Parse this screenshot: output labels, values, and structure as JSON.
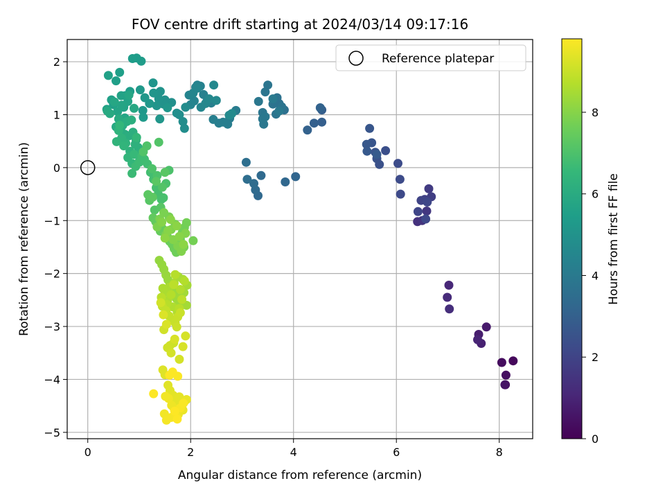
{
  "chart_data": {
    "type": "scatter",
    "title": "FOV centre drift starting at 2024/03/14 09:17:16",
    "xlabel": "Angular distance from reference (arcmin)",
    "ylabel": "Rotation from reference (arcmin)",
    "xlim": [
      -0.4,
      8.65
    ],
    "ylim": [
      -5.12,
      2.42
    ],
    "xticks": [
      0,
      2,
      4,
      6,
      8
    ],
    "yticks": [
      -5,
      -4,
      -3,
      -2,
      -1,
      0,
      1,
      2
    ],
    "grid": true,
    "legend": {
      "position": "top-right",
      "entries": [
        "Reference platepar"
      ]
    },
    "reference_point": {
      "x": 0,
      "y": 0
    },
    "colorbar": {
      "label": "Hours from first FF file",
      "range": [
        0,
        9.8
      ],
      "ticks": [
        0,
        2,
        4,
        6,
        8
      ],
      "colormap": [
        "#440154",
        "#482878",
        "#3e4989",
        "#31688e",
        "#26828e",
        "#1f9e89",
        "#35b779",
        "#6ece58",
        "#b5de2b",
        "#fde725"
      ]
    },
    "series": [
      {
        "x": [
          8.12,
          8.27,
          8.05,
          8.13,
          8.11
        ],
        "y": [
          -4.1,
          -3.65,
          -3.68,
          -3.92,
          -4.1
        ],
        "t": [
          0.1,
          0.2,
          0.3,
          0.4,
          0.5
        ]
      },
      {
        "x": [
          7.75,
          7.6,
          7.65,
          7.58
        ],
        "y": [
          -3.01,
          -3.15,
          -3.32,
          -3.25
        ],
        "t": [
          0.7,
          0.8,
          0.9,
          1.0
        ]
      },
      {
        "x": [
          7.02,
          6.99,
          7.03
        ],
        "y": [
          -2.22,
          -2.45,
          -2.67
        ],
        "t": [
          1.1,
          1.2,
          1.3
        ]
      },
      {
        "x": [
          6.41,
          6.5,
          6.59,
          6.63,
          6.68,
          6.55,
          6.48,
          6.42,
          6.6,
          6.57
        ],
        "y": [
          -1.02,
          -1.0,
          -0.82,
          -0.4,
          -0.55,
          -0.6,
          -0.62,
          -0.83,
          -0.65,
          -0.97
        ],
        "t": [
          1.4,
          1.5,
          1.6,
          1.7,
          1.8,
          1.9,
          2.0,
          2.05,
          2.1,
          2.15
        ]
      },
      {
        "x": [
          6.08,
          6.07,
          6.03,
          5.79,
          5.67,
          5.62,
          5.59,
          5.52,
          5.48,
          5.42,
          5.43,
          5.62
        ],
        "y": [
          -0.5,
          -0.22,
          0.08,
          0.32,
          0.06,
          0.17,
          0.29,
          0.47,
          0.74,
          0.44,
          0.31,
          0.25
        ],
        "t": [
          2.2,
          2.25,
          2.3,
          2.4,
          2.45,
          2.5,
          2.55,
          2.6,
          2.65,
          2.7,
          2.75,
          2.8
        ]
      },
      {
        "x": [
          4.55,
          4.55,
          4.4,
          4.27,
          4.52
        ],
        "y": [
          1.09,
          0.86,
          0.84,
          0.71,
          1.13
        ],
        "t": [
          2.9,
          2.95,
          3.0,
          3.05,
          3.1
        ]
      },
      {
        "x": [
          4.04,
          3.84,
          3.31,
          3.37,
          3.26,
          3.23,
          3.1,
          3.08
        ],
        "y": [
          -0.17,
          -0.27,
          -0.53,
          -0.15,
          -0.42,
          -0.3,
          -0.22,
          0.1
        ],
        "t": [
          3.2,
          3.25,
          3.3,
          3.35,
          3.4,
          3.45,
          3.5,
          3.55
        ]
      },
      {
        "x": [
          3.82,
          3.75,
          3.72,
          3.68,
          3.63,
          3.6,
          3.77,
          3.66,
          3.5,
          3.45,
          3.4,
          3.42,
          3.32,
          3.4,
          3.45,
          3.72,
          3.6
        ],
        "y": [
          1.09,
          1.13,
          1.21,
          1.32,
          1.29,
          1.2,
          1.15,
          1.01,
          1.56,
          1.43,
          1.04,
          0.82,
          1.25,
          0.92,
          0.96,
          1.07,
          1.3
        ],
        "t": [
          3.6,
          3.62,
          3.65,
          3.68,
          3.7,
          3.72,
          3.75,
          3.78,
          3.8,
          3.82,
          3.85,
          3.88,
          3.9,
          3.92,
          3.95,
          3.98,
          4.0
        ]
      },
      {
        "x": [
          2.88,
          2.76,
          2.72,
          2.63,
          2.55,
          2.44,
          2.4,
          2.32,
          2.25,
          2.19,
          2.13,
          2.1,
          2.07,
          2.0,
          1.97,
          2.05,
          2.13,
          2.2,
          2.29,
          2.36,
          2.45,
          2.5,
          2.75,
          2.8
        ],
        "y": [
          1.08,
          0.93,
          0.82,
          0.86,
          0.84,
          0.91,
          1.22,
          1.26,
          1.38,
          1.54,
          1.56,
          1.52,
          1.26,
          1.19,
          1.37,
          1.41,
          1.5,
          1.14,
          1.21,
          1.3,
          1.56,
          1.27,
          0.99,
          1.02
        ],
        "t": [
          4.1,
          4.12,
          4.15,
          4.18,
          4.2,
          4.22,
          4.25,
          4.28,
          4.3,
          4.32,
          4.35,
          4.38,
          4.4,
          4.42,
          4.45,
          4.48,
          4.5,
          4.52,
          4.55,
          4.58,
          4.6,
          4.62,
          4.65,
          4.68
        ]
      },
      {
        "x": [
          1.9,
          1.88,
          1.85,
          1.78,
          1.73,
          1.63,
          1.58,
          1.55,
          1.5,
          1.47,
          1.41,
          1.38,
          1.34,
          1.27,
          1.28,
          1.4,
          1.55,
          1.2,
          1.11,
          1.07,
          1.02,
          1.08
        ],
        "y": [
          1.14,
          0.74,
          0.87,
          1.0,
          1.03,
          1.23,
          1.22,
          1.2,
          1.28,
          1.2,
          1.44,
          1.3,
          1.17,
          1.6,
          1.41,
          0.92,
          1.13,
          1.21,
          1.32,
          1.08,
          1.47,
          0.95
        ],
        "t": [
          4.75,
          4.78,
          4.8,
          4.82,
          4.85,
          4.88,
          4.9,
          4.92,
          4.95,
          4.98,
          5.0,
          5.02,
          5.05,
          5.08,
          5.1,
          5.12,
          5.15,
          5.18,
          5.2,
          5.22,
          5.25,
          5.28
        ]
      },
      {
        "x": [
          1.04,
          0.95,
          0.87,
          0.82,
          0.73,
          0.62,
          0.55,
          0.5,
          0.46,
          0.4,
          0.37,
          0.65,
          0.7,
          0.78,
          0.58,
          0.66,
          0.72,
          0.52,
          0.8,
          0.9
        ],
        "y": [
          2.01,
          2.07,
          2.06,
          1.44,
          1.36,
          1.8,
          1.64,
          1.19,
          1.28,
          1.74,
          1.1,
          1.36,
          1.14,
          1.25,
          1.06,
          1.18,
          0.94,
          1.24,
          1.37,
          1.12
        ],
        "t": [
          5.35,
          5.38,
          5.4,
          5.42,
          5.45,
          5.48,
          5.5,
          5.52,
          5.55,
          5.58,
          5.6,
          5.62,
          5.65,
          5.68,
          5.7,
          5.72,
          5.75,
          5.78,
          5.8,
          5.82
        ]
      },
      {
        "x": [
          0.38,
          0.43,
          0.55,
          0.6,
          0.64,
          0.68,
          0.72,
          0.76,
          0.8,
          0.85,
          0.88,
          0.94,
          0.98,
          1.01,
          0.92,
          0.82,
          0.74,
          0.66,
          0.6,
          0.56,
          0.7,
          0.78,
          0.86,
          0.62,
          0.95,
          1.08,
          1.0,
          0.9
        ],
        "y": [
          1.07,
          1.02,
          0.77,
          0.92,
          0.72,
          0.8,
          0.63,
          0.87,
          0.6,
          0.9,
          0.67,
          0.52,
          0.38,
          0.28,
          0.44,
          0.31,
          0.46,
          0.56,
          0.7,
          0.49,
          0.41,
          0.19,
          0.08,
          0.8,
          0.57,
          0.17,
          0.12,
          0.25
        ],
        "t": [
          5.9,
          5.92,
          5.95,
          5.98,
          6.0,
          6.02,
          6.05,
          6.08,
          6.1,
          6.12,
          6.15,
          6.18,
          6.2,
          6.22,
          6.25,
          6.28,
          6.3,
          6.32,
          6.35,
          6.38,
          6.4,
          6.42,
          6.45,
          6.48,
          6.5,
          6.52,
          6.55,
          6.58
        ]
      },
      {
        "x": [
          0.86,
          0.93,
          1.0,
          1.05,
          1.1,
          1.16,
          1.22,
          1.28,
          1.33,
          1.37,
          1.43,
          1.47,
          1.52,
          1.58,
          1.35,
          1.25,
          1.15,
          1.08,
          1.38,
          1.45,
          1.3,
          1.2,
          1.42,
          1.5,
          1.33,
          1.17,
          1.26
        ],
        "y": [
          -0.11,
          0.02,
          0.1,
          0.21,
          0.16,
          0.07,
          -0.09,
          -0.22,
          -0.38,
          -0.5,
          -0.6,
          -0.57,
          -0.3,
          -0.05,
          -0.15,
          -0.02,
          0.41,
          0.3,
          0.48,
          -0.37,
          -0.8,
          -0.62,
          -0.75,
          -0.09,
          -0.26,
          -0.51,
          -0.56
        ],
        "t": [
          6.65,
          6.68,
          6.7,
          6.72,
          6.75,
          6.78,
          6.8,
          6.82,
          6.85,
          6.88,
          6.9,
          6.92,
          6.95,
          6.98,
          7.0,
          7.02,
          7.05,
          7.08,
          7.1,
          7.12,
          7.15,
          7.18,
          7.2,
          7.22,
          7.25,
          7.28,
          7.3
        ]
      },
      {
        "x": [
          1.27,
          1.32,
          1.36,
          1.41,
          1.45,
          1.5,
          1.55,
          1.59,
          1.64,
          1.68,
          1.72,
          1.76,
          1.8,
          1.84,
          1.88,
          1.92,
          2.05,
          1.87,
          1.7,
          1.58,
          1.48,
          1.4,
          1.35,
          1.52,
          1.62,
          1.75,
          1.82,
          1.9,
          1.66,
          1.44,
          1.56,
          1.78,
          1.61,
          1.73,
          1.86,
          1.5
        ],
        "y": [
          -0.95,
          -1.02,
          -1.11,
          -1.2,
          -1.15,
          -1.25,
          -1.31,
          -1.39,
          -1.45,
          -1.53,
          -1.6,
          -1.41,
          -1.35,
          -1.22,
          -1.13,
          -1.04,
          -1.38,
          -1.5,
          -1.07,
          -0.93,
          -0.85,
          -0.97,
          -1.12,
          -1.27,
          -1.17,
          -1.48,
          -1.58,
          -1.24,
          -1.36,
          -1.03,
          -1.19,
          -1.3,
          -0.98,
          -1.1,
          -1.45,
          -1.33
        ],
        "t": [
          7.4,
          7.42,
          7.44,
          7.46,
          7.48,
          7.5,
          7.52,
          7.54,
          7.56,
          7.58,
          7.6,
          7.62,
          7.64,
          7.66,
          7.68,
          7.7,
          7.72,
          7.74,
          7.76,
          7.78,
          7.8,
          7.82,
          7.84,
          7.86,
          7.88,
          7.9,
          7.92,
          7.94,
          7.96,
          7.98,
          8.0,
          8.02,
          8.04,
          8.06,
          8.08,
          8.1
        ]
      },
      {
        "x": [
          1.39,
          1.44,
          1.48,
          1.52,
          1.56,
          1.6,
          1.64,
          1.68,
          1.72,
          1.77,
          1.82,
          1.87,
          1.92,
          1.93,
          1.85,
          1.76,
          1.68,
          1.58,
          1.5,
          1.46,
          1.55,
          1.65,
          1.74,
          1.8,
          1.88,
          1.62,
          1.7,
          1.78,
          1.53,
          1.43,
          1.67,
          1.83
        ],
        "y": [
          -1.75,
          -1.83,
          -1.92,
          -2.03,
          -2.12,
          -2.2,
          -2.3,
          -2.39,
          -2.47,
          -2.56,
          -2.45,
          -2.36,
          -2.6,
          -2.22,
          -2.11,
          -2.06,
          -2.18,
          -2.26,
          -2.35,
          -2.28,
          -2.51,
          -2.63,
          -2.73,
          -2.3,
          -2.14,
          -2.4,
          -2.02,
          -2.66,
          -2.58,
          -2.45,
          -2.21,
          -2.49
        ],
        "t": [
          8.2,
          8.22,
          8.24,
          8.26,
          8.28,
          8.3,
          8.32,
          8.34,
          8.36,
          8.38,
          8.4,
          8.42,
          8.44,
          8.46,
          8.48,
          8.5,
          8.52,
          8.54,
          8.56,
          8.58,
          8.6,
          8.62,
          8.64,
          8.66,
          8.68,
          8.7,
          8.72,
          8.74,
          8.76,
          8.78,
          8.8,
          8.82
        ]
      },
      {
        "x": [
          1.45,
          1.52,
          1.58,
          1.64,
          1.7,
          1.75,
          1.8,
          1.73,
          1.67,
          1.6,
          1.55,
          1.48,
          1.42,
          1.62,
          1.78,
          1.9,
          1.85,
          1.69,
          1.53,
          1.47
        ],
        "y": [
          -2.62,
          -2.7,
          -2.8,
          -2.88,
          -2.93,
          -2.82,
          -2.74,
          -3.01,
          -3.31,
          -3.36,
          -3.4,
          -3.06,
          -2.55,
          -3.5,
          -3.62,
          -3.18,
          -3.38,
          -3.24,
          -2.96,
          -2.78
        ],
        "t": [
          8.9,
          8.92,
          8.94,
          8.96,
          8.98,
          9.0,
          9.02,
          9.04,
          9.06,
          9.08,
          9.1,
          9.12,
          9.14,
          9.16,
          9.18,
          9.2,
          9.22,
          9.24,
          9.26,
          9.28
        ]
      },
      {
        "x": [
          1.46,
          1.5,
          1.56,
          1.6,
          1.66,
          1.72,
          1.78,
          1.83,
          1.88,
          1.92,
          1.85,
          1.76,
          1.68,
          1.63,
          1.57,
          1.51,
          1.49,
          1.53,
          1.62,
          1.71,
          1.8,
          1.86,
          1.75,
          1.65,
          1.59,
          1.28,
          1.74,
          1.69
        ],
        "y": [
          -3.82,
          -3.91,
          -4.11,
          -4.21,
          -4.3,
          -4.4,
          -4.33,
          -4.47,
          -4.42,
          -4.38,
          -4.58,
          -4.66,
          -4.55,
          -4.49,
          -4.36,
          -4.32,
          -4.65,
          -4.77,
          -4.72,
          -4.68,
          -4.54,
          -4.45,
          -3.94,
          -3.86,
          -3.92,
          -4.27,
          -4.75,
          -4.6
        ],
        "t": [
          9.32,
          9.34,
          9.36,
          9.38,
          9.4,
          9.42,
          9.44,
          9.46,
          9.48,
          9.5,
          9.52,
          9.54,
          9.56,
          9.58,
          9.6,
          9.62,
          9.64,
          9.66,
          9.68,
          9.7,
          9.72,
          9.74,
          9.76,
          9.78,
          9.79,
          9.79,
          9.8,
          9.8
        ]
      }
    ]
  }
}
